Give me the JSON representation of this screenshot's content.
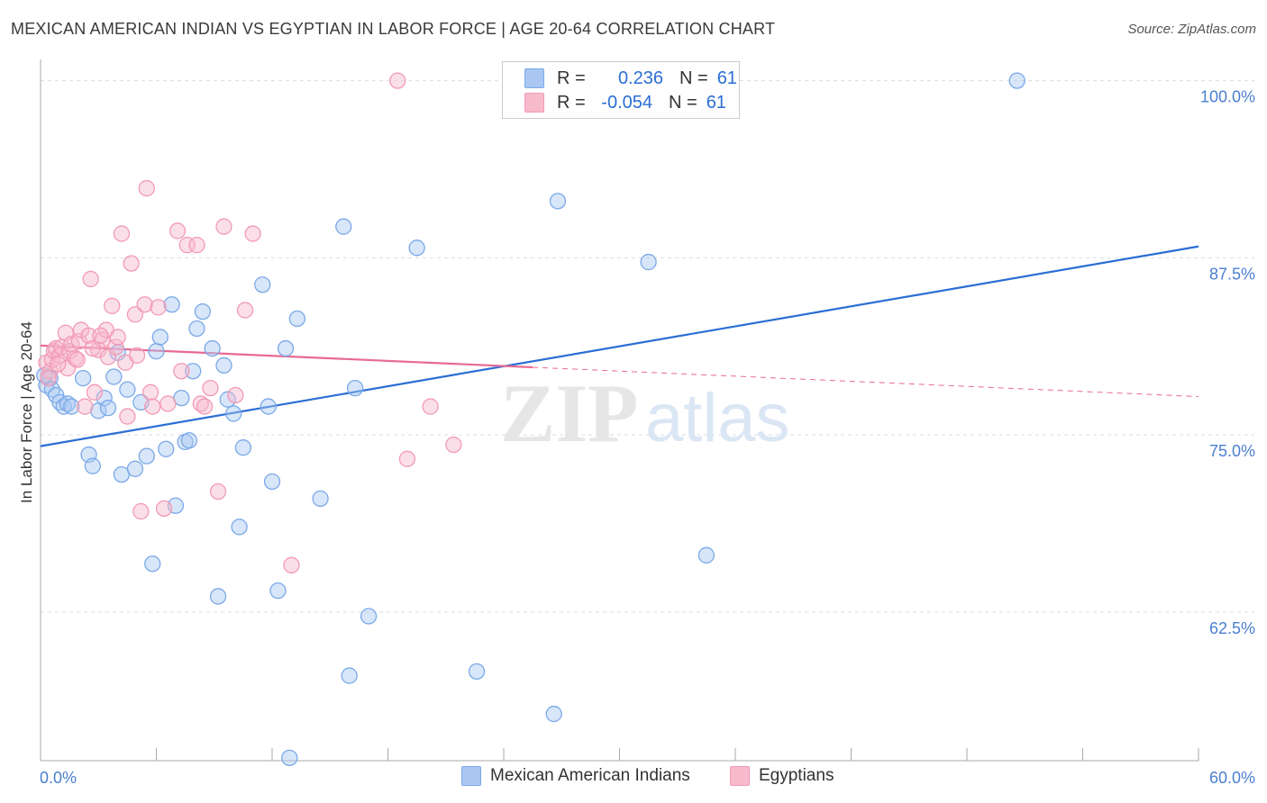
{
  "title": "MEXICAN AMERICAN INDIAN VS EGYPTIAN IN LABOR FORCE | AGE 20-64 CORRELATION CHART",
  "source": "Source: ZipAtlas.com",
  "watermark": {
    "zip": "ZIP",
    "atlas": "atlas"
  },
  "legend_top": {
    "rows": [
      {
        "r_label": "R =",
        "r_value": "0.236",
        "n_label": "N =",
        "n_value": "61",
        "color": "#a9c7f2"
      },
      {
        "r_label": "R =",
        "r_value": "-0.054",
        "n_label": "N =",
        "n_value": "61",
        "color": "#f7b9cc"
      }
    ]
  },
  "legend_bottom": [
    {
      "label": "Mexican American Indians",
      "color": "#a9c7f2"
    },
    {
      "label": "Egyptians",
      "color": "#f7b9cc"
    }
  ],
  "chart_data": {
    "type": "scatter",
    "title": "MEXICAN AMERICAN INDIAN VS EGYPTIAN IN LABOR FORCE | AGE 20-64 CORRELATION CHART",
    "xlabel": "",
    "ylabel": "In Labor Force | Age 20-64",
    "xlim": [
      0,
      60
    ],
    "ylim": [
      52,
      101.5
    ],
    "x_tick_labels": [
      "0.0%",
      "60.0%"
    ],
    "y_ticks": [
      62.5,
      75.0,
      87.5,
      100.0
    ],
    "y_tick_labels": [
      "62.5%",
      "75.0%",
      "87.5%",
      "100.0%"
    ],
    "series": [
      {
        "name": "Mexican American Indians",
        "color": "#7aa9e8",
        "line_color": "#2a6ed4",
        "trend": {
          "x": [
            0,
            60
          ],
          "y": [
            74.2,
            88.3
          ],
          "solid_to": 60
        },
        "points": [
          [
            0.3,
            78.5
          ],
          [
            0.5,
            79.0
          ],
          [
            0.6,
            78.2
          ],
          [
            0.8,
            77.8
          ],
          [
            1.0,
            77.3
          ],
          [
            1.2,
            77.0
          ],
          [
            1.4,
            77.2
          ],
          [
            1.6,
            77.0
          ],
          [
            2.2,
            79.0
          ],
          [
            2.5,
            73.6
          ],
          [
            2.7,
            72.8
          ],
          [
            3.0,
            76.7
          ],
          [
            3.3,
            77.6
          ],
          [
            3.5,
            76.9
          ],
          [
            3.8,
            79.1
          ],
          [
            4.0,
            80.8
          ],
          [
            4.2,
            72.2
          ],
          [
            4.5,
            78.2
          ],
          [
            4.9,
            72.6
          ],
          [
            5.2,
            77.3
          ],
          [
            5.5,
            73.5
          ],
          [
            5.8,
            65.9
          ],
          [
            6.0,
            80.9
          ],
          [
            6.2,
            81.9
          ],
          [
            6.5,
            74.0
          ],
          [
            6.8,
            84.2
          ],
          [
            7.0,
            70.0
          ],
          [
            7.3,
            77.6
          ],
          [
            7.5,
            74.5
          ],
          [
            7.7,
            74.6
          ],
          [
            7.9,
            79.5
          ],
          [
            8.1,
            82.5
          ],
          [
            8.4,
            83.7
          ],
          [
            8.9,
            81.1
          ],
          [
            9.2,
            63.6
          ],
          [
            9.5,
            79.9
          ],
          [
            9.7,
            77.5
          ],
          [
            10.0,
            76.5
          ],
          [
            10.3,
            68.5
          ],
          [
            10.5,
            74.1
          ],
          [
            11.5,
            85.6
          ],
          [
            11.8,
            77.0
          ],
          [
            12.0,
            71.7
          ],
          [
            12.3,
            64.0
          ],
          [
            12.7,
            81.1
          ],
          [
            12.9,
            52.2
          ],
          [
            13.3,
            83.2
          ],
          [
            14.5,
            70.5
          ],
          [
            15.7,
            89.7
          ],
          [
            16.0,
            58.0
          ],
          [
            16.3,
            78.3
          ],
          [
            17.0,
            62.2
          ],
          [
            19.5,
            88.2
          ],
          [
            22.6,
            58.3
          ],
          [
            26.6,
            55.3
          ],
          [
            26.8,
            91.5
          ],
          [
            28.5,
            100.0
          ],
          [
            31.5,
            87.2
          ],
          [
            34.5,
            66.5
          ],
          [
            50.6,
            100.0
          ],
          [
            0.2,
            79.2
          ]
        ]
      },
      {
        "name": "Egyptians",
        "color": "#f29ab5",
        "line_color": "#e86a94",
        "trend": {
          "x": [
            0,
            60
          ],
          "y": [
            81.3,
            77.7
          ],
          "solid_to": 25.5
        },
        "points": [
          [
            0.3,
            80.1
          ],
          [
            0.5,
            79.5
          ],
          [
            0.6,
            80.3
          ],
          [
            0.7,
            80.9
          ],
          [
            0.8,
            81.1
          ],
          [
            1.0,
            80.6
          ],
          [
            1.1,
            81.2
          ],
          [
            1.3,
            82.2
          ],
          [
            1.4,
            79.7
          ],
          [
            1.5,
            80.9
          ],
          [
            1.6,
            81.4
          ],
          [
            1.8,
            80.4
          ],
          [
            2.0,
            81.6
          ],
          [
            2.1,
            82.4
          ],
          [
            2.3,
            77.0
          ],
          [
            2.5,
            82.0
          ],
          [
            2.6,
            86.0
          ],
          [
            2.8,
            78.0
          ],
          [
            3.0,
            81.0
          ],
          [
            3.2,
            81.7
          ],
          [
            3.4,
            82.4
          ],
          [
            3.5,
            80.5
          ],
          [
            3.7,
            84.1
          ],
          [
            3.9,
            81.2
          ],
          [
            4.0,
            81.9
          ],
          [
            4.2,
            89.2
          ],
          [
            4.5,
            76.3
          ],
          [
            4.7,
            87.1
          ],
          [
            4.9,
            83.5
          ],
          [
            5.0,
            80.6
          ],
          [
            5.2,
            69.6
          ],
          [
            5.4,
            84.2
          ],
          [
            5.5,
            92.4
          ],
          [
            5.7,
            78.0
          ],
          [
            5.8,
            77.0
          ],
          [
            6.1,
            84.0
          ],
          [
            6.4,
            69.8
          ],
          [
            7.1,
            89.4
          ],
          [
            7.3,
            79.5
          ],
          [
            7.6,
            88.4
          ],
          [
            8.1,
            88.4
          ],
          [
            8.3,
            77.2
          ],
          [
            8.5,
            77.0
          ],
          [
            9.2,
            71.0
          ],
          [
            9.5,
            89.7
          ],
          [
            10.1,
            77.8
          ],
          [
            10.6,
            83.8
          ],
          [
            11.0,
            89.2
          ],
          [
            13.0,
            65.8
          ],
          [
            18.5,
            100.0
          ],
          [
            19.0,
            73.3
          ],
          [
            20.2,
            77.0
          ],
          [
            21.4,
            74.3
          ],
          [
            0.4,
            79.0
          ],
          [
            1.9,
            80.3
          ],
          [
            2.7,
            81.1
          ],
          [
            3.1,
            82.0
          ],
          [
            4.4,
            80.1
          ],
          [
            6.6,
            77.2
          ],
          [
            8.8,
            78.3
          ],
          [
            0.9,
            80.0
          ]
        ]
      }
    ]
  }
}
